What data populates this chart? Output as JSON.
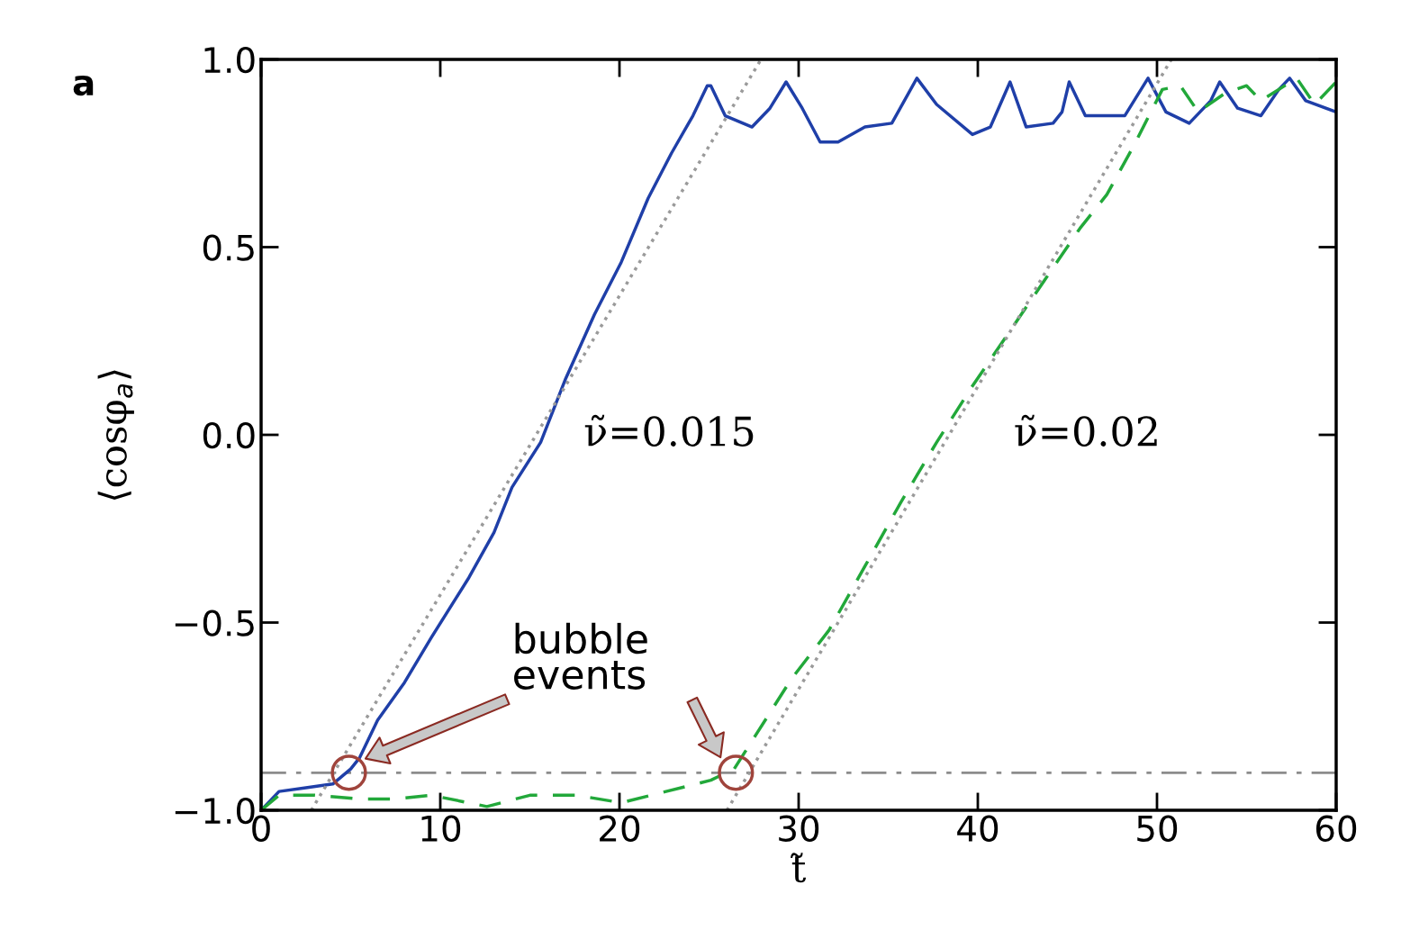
{
  "chart_data": {
    "type": "line",
    "xlabel": "t̃",
    "ylabel": "⟨cosφ$_{a}$⟩",
    "annotations": [
      "a",
      "ν̃=0.015",
      "ν̃=0.02",
      "bubble events"
    ],
    "xlim": [
      0,
      60
    ],
    "ylim": [
      -1.0,
      1.0
    ],
    "xticks": [
      0,
      10,
      20,
      30,
      40,
      50,
      60
    ],
    "yticks": [
      {
        "value": -1.0,
        "label": "−1.0"
      },
      {
        "value": -0.5,
        "label": "−0.5"
      },
      {
        "value": 0.0,
        "label": "0.0"
      },
      {
        "value": 0.5,
        "label": "0.5"
      },
      {
        "value": 1.0,
        "label": "1.0"
      }
    ],
    "grid": false,
    "legend": false,
    "ref_lines": [
      {
        "axis": "y",
        "value": -0.9,
        "color": "#8c8c8c",
        "line_style": "dashdot"
      }
    ],
    "series": [
      {
        "color": "#1f3fa8",
        "line_style": "solid",
        "x": [
          0,
          1,
          2.5,
          4,
          5,
          5.5,
          6.5,
          8,
          9.5,
          11.6,
          13,
          14,
          15.6,
          17,
          18.6,
          20.1,
          21.6,
          22.9,
          24.1,
          24.9,
          25.1,
          25.9,
          27.4,
          28.4,
          29.3,
          30.2,
          31.2,
          32.2,
          33.7,
          35.2,
          36.6,
          37.7,
          39.7,
          40.7,
          41.8,
          42.7,
          44.2,
          44.7,
          45.1,
          46,
          47.2,
          48.2,
          49.5,
          50.5,
          51.8,
          53,
          53.5,
          54.5,
          55.8,
          56.8,
          57.4,
          58.3,
          60
        ],
        "values": [
          -1.0,
          -0.95,
          -0.94,
          -0.93,
          -0.89,
          -0.86,
          -0.76,
          -0.66,
          -0.54,
          -0.38,
          -0.26,
          -0.14,
          -0.02,
          0.15,
          0.32,
          0.46,
          0.63,
          0.75,
          0.85,
          0.93,
          0.93,
          0.85,
          0.82,
          0.87,
          0.94,
          0.87,
          0.78,
          0.78,
          0.82,
          0.83,
          0.95,
          0.88,
          0.8,
          0.82,
          0.94,
          0.82,
          0.83,
          0.86,
          0.94,
          0.85,
          0.85,
          0.85,
          0.95,
          0.86,
          0.83,
          0.89,
          0.94,
          0.87,
          0.85,
          0.92,
          0.95,
          0.89,
          0.86
        ]
      },
      {
        "color": "#22a83a",
        "line_style": "dashed",
        "x": [
          0,
          1,
          3,
          5.5,
          7.5,
          9.5,
          12.6,
          15,
          17.6,
          20.1,
          22.6,
          25.1,
          26.4,
          27.6,
          29.6,
          31.7,
          33.7,
          35.7,
          37.7,
          39.7,
          41.7,
          43.7,
          45.7,
          47.2,
          48.7,
          50.3,
          51.3,
          52.3,
          53.8,
          55,
          55.8,
          57.8,
          58.8,
          60
        ],
        "values": [
          -1.0,
          -0.96,
          -0.96,
          -0.97,
          -0.97,
          -0.96,
          -0.99,
          -0.96,
          -0.96,
          -0.98,
          -0.95,
          -0.92,
          -0.89,
          -0.8,
          -0.65,
          -0.52,
          -0.35,
          -0.18,
          -0.02,
          0.13,
          0.27,
          0.41,
          0.55,
          0.64,
          0.77,
          0.92,
          0.93,
          0.86,
          0.91,
          0.93,
          0.89,
          0.95,
          0.88,
          0.94
        ]
      },
      {
        "color": "#9a9a9a",
        "line_style": "dotted",
        "x": [
          2.8,
          27.9
        ],
        "values": [
          -1.0,
          1.0
        ]
      },
      {
        "color": "#9a9a9a",
        "line_style": "dotted",
        "x": [
          26,
          50.8
        ],
        "values": [
          -1.0,
          1.0
        ]
      },
      {
        "type": "scatter",
        "color": "#a0443c",
        "marker": "circle",
        "x": [
          4.9,
          26.5
        ],
        "values": [
          -0.9,
          -0.9
        ]
      }
    ]
  }
}
